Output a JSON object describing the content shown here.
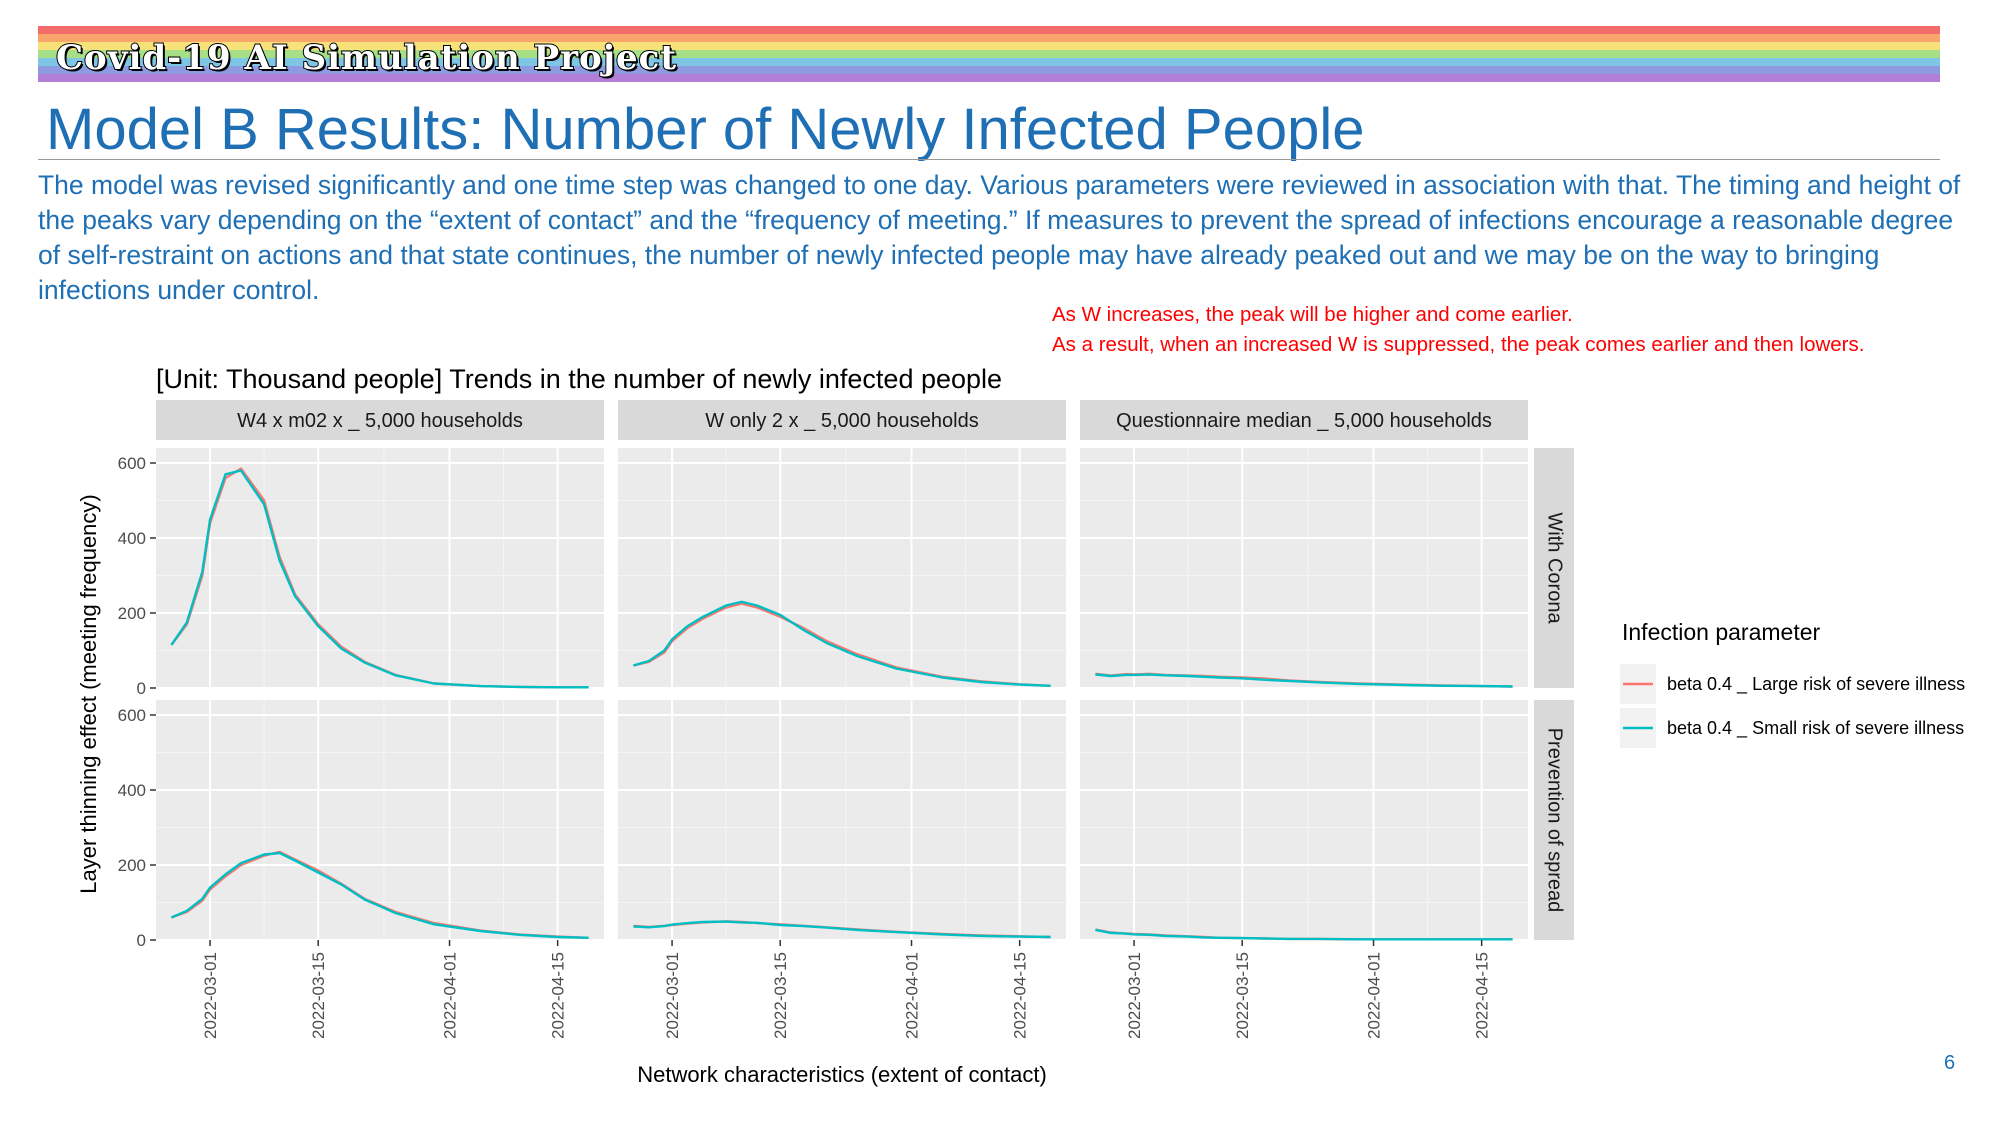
{
  "slide": {
    "header": "Covid-19 AI Simulation Project",
    "title": "Model B Results: Number of Newly Infected People",
    "intro": "The model was revised significantly and one time step was changed to one day. Various parameters were reviewed in association with that. The timing and height of the peaks vary depending on the “extent of contact” and the “frequency of meeting.” If measures to prevent the spread of infections encourage a reasonable degree of self-restraint on actions and that state continues, the number of newly infected people may have already peaked out and we may be on the way to bringing infections under control.",
    "note_line1": "As W increases, the peak will be higher and come earlier.",
    "note_line2": "As a result, when an increased W is suppressed, the peak comes earlier and then lowers.",
    "page_number": "6",
    "banner_colors": [
      "#f46b6b",
      "#f9a66c",
      "#f7e27a",
      "#a6df85",
      "#7fc6e6",
      "#8f9be0",
      "#b37fd6"
    ]
  },
  "chart_data": {
    "type": "line",
    "title": "[Unit: Thousand people] Trends in the number of newly infected people",
    "xlabel": "Network characteristics (extent of contact)",
    "ylabel": "Layer thinning effect (meeting frequency)",
    "x_ticks": [
      "2022-03-01",
      "2022-03-15",
      "2022-04-01",
      "2022-04-15"
    ],
    "y_ticks": [
      0,
      200,
      400,
      600
    ],
    "xlim": [
      "2022-02-22",
      "2022-04-21"
    ],
    "ylim": [
      0,
      640
    ],
    "grid": true,
    "legend": {
      "title": "Infection parameter",
      "position": "right",
      "entries": [
        {
          "name": "beta 0.4 _ Large risk of severe illness",
          "color": "#f8766d"
        },
        {
          "name": "beta 0.4 _ Small risk of severe illness",
          "color": "#00bfc4"
        }
      ]
    },
    "columns": [
      "W4 x m02 x _ 5,000 households",
      "W only 2 x _ 5,000 households",
      "Questionnaire median _ 5,000 households"
    ],
    "rows": [
      "With Corona",
      "Prevention of spread"
    ],
    "x": [
      "2022-02-24",
      "2022-02-26",
      "2022-02-28",
      "2022-03-01",
      "2022-03-03",
      "2022-03-05",
      "2022-03-08",
      "2022-03-10",
      "2022-03-12",
      "2022-03-15",
      "2022-03-18",
      "2022-03-21",
      "2022-03-25",
      "2022-03-30",
      "2022-04-05",
      "2022-04-10",
      "2022-04-15",
      "2022-04-19"
    ],
    "panels": [
      {
        "column": "W4 x m02 x _ 5,000 households",
        "row": "With Corona",
        "series": [
          {
            "name": "beta 0.4 _ Large risk of severe illness",
            "values": [
              115,
              170,
              300,
              440,
              560,
              585,
              500,
              350,
              250,
              170,
              110,
              70,
              35,
              12,
              5,
              3,
              2,
              2
            ]
          },
          {
            "name": "beta 0.4 _ Small risk of severe illness",
            "values": [
              115,
              175,
              310,
              450,
              570,
              580,
              490,
              340,
              245,
              165,
              105,
              68,
              34,
              12,
              5,
              3,
              2,
              2
            ]
          }
        ]
      },
      {
        "column": "W only 2 x _ 5,000 households",
        "row": "With Corona",
        "series": [
          {
            "name": "beta 0.4 _ Large risk of severe illness",
            "values": [
              60,
              70,
              95,
              125,
              160,
              185,
              215,
              225,
              215,
              190,
              160,
              125,
              90,
              55,
              30,
              18,
              10,
              6
            ]
          },
          {
            "name": "beta 0.4 _ Small risk of severe illness",
            "values": [
              60,
              72,
              100,
              130,
              165,
              190,
              220,
              230,
              220,
              195,
              155,
              120,
              85,
              52,
              28,
              16,
              9,
              6
            ]
          }
        ]
      },
      {
        "column": "Questionnaire median _ 5,000 households",
        "row": "With Corona",
        "series": [
          {
            "name": "beta 0.4 _ Large risk of severe illness",
            "values": [
              38,
              33,
              37,
              36,
              38,
              35,
              33,
              32,
              30,
              28,
              25,
              20,
              16,
              12,
              9,
              7,
              5,
              4
            ]
          },
          {
            "name": "beta 0.4 _ Small risk of severe illness",
            "values": [
              36,
              32,
              35,
              35,
              36,
              34,
              32,
              30,
              28,
              26,
              22,
              19,
              15,
              11,
              8,
              6,
              5,
              4
            ]
          }
        ]
      },
      {
        "column": "W4 x m02 x _ 5,000 households",
        "row": "Prevention of spread",
        "series": [
          {
            "name": "beta 0.4 _ Large risk of severe illness",
            "values": [
              60,
              75,
              105,
              135,
              170,
              200,
              225,
              235,
              215,
              185,
              150,
              110,
              75,
              45,
              25,
              15,
              9,
              6
            ]
          },
          {
            "name": "beta 0.4 _ Small risk of severe illness",
            "values": [
              60,
              78,
              110,
              140,
              175,
              205,
              228,
              232,
              212,
              180,
              148,
              108,
              72,
              42,
              24,
              14,
              8,
              6
            ]
          }
        ]
      },
      {
        "column": "W only 2 x _ 5,000 households",
        "row": "Prevention of spread",
        "series": [
          {
            "name": "beta 0.4 _ Large risk of severe illness",
            "values": [
              38,
              35,
              38,
              40,
              44,
              47,
              50,
              48,
              45,
              42,
              38,
              34,
              28,
              22,
              16,
              12,
              10,
              8
            ]
          },
          {
            "name": "beta 0.4 _ Small risk of severe illness",
            "values": [
              36,
              34,
              37,
              41,
              45,
              48,
              49,
              47,
              46,
              40,
              37,
              33,
              27,
              21,
              15,
              11,
              9,
              8
            ]
          }
        ]
      },
      {
        "column": "Questionnaire median _ 5,000 households",
        "row": "Prevention of spread",
        "series": [
          {
            "name": "beta 0.4 _ Large risk of severe illness",
            "values": [
              28,
              20,
              17,
              16,
              15,
              12,
              10,
              8,
              6,
              5,
              4,
              3,
              3,
              2,
              2,
              2,
              2,
              2
            ]
          },
          {
            "name": "beta 0.4 _ Small risk of severe illness",
            "values": [
              27,
              19,
              17,
              15,
              14,
              11,
              9,
              7,
              6,
              5,
              4,
              3,
              3,
              2,
              2,
              2,
              2,
              2
            ]
          }
        ]
      }
    ]
  }
}
